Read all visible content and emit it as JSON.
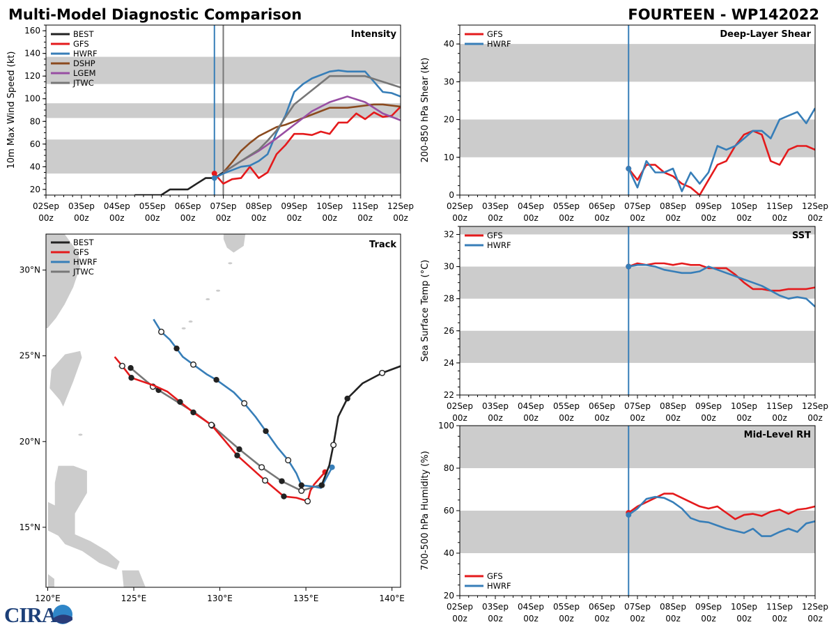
{
  "header": {
    "title": "Multi-Model Diagnostic Comparison",
    "storm": "FOURTEEN - WP142022"
  },
  "logo": "CIRA",
  "colors": {
    "BEST": "#222222",
    "GFS": "#e41a1c",
    "HWRF": "#377eb8",
    "DSHP": "#8b4a1e",
    "LGEM": "#984ea3",
    "JTWC": "#777777",
    "band": "#cccccc",
    "land": "#cccccc"
  },
  "x_ticks": [
    "02Sep",
    "03Sep",
    "04Sep",
    "05Sep",
    "06Sep",
    "07Sep",
    "08Sep",
    "09Sep",
    "10Sep",
    "11Sep",
    "12Sep"
  ],
  "x_tick_sub": "00z",
  "chart_data": [
    {
      "id": "intensity",
      "type": "line",
      "title": "Intensity",
      "ylabel": "10m Max Wind Speed (kt)",
      "xlim": [
        "02Sep 00z",
        "12Sep 00z"
      ],
      "ylim": [
        15,
        165
      ],
      "yticks": [
        20,
        40,
        60,
        80,
        100,
        120,
        140,
        160
      ],
      "bands": [
        [
          34,
          64
        ],
        [
          83,
          96
        ],
        [
          113,
          137
        ]
      ],
      "legend": "upper-left",
      "vlines": [
        {
          "x": "06Sep 18z",
          "color": "HWRF"
        },
        {
          "x": "07Sep 00z",
          "color": "JTWC"
        }
      ],
      "series": [
        {
          "name": "BEST",
          "x": [
            "04Sep 12z",
            "04Sep 18z",
            "05Sep 00z",
            "05Sep 06z",
            "05Sep 12z",
            "05Sep 18z",
            "06Sep 00z",
            "06Sep 06z",
            "06Sep 12z",
            "06Sep 18z",
            "07Sep 00z"
          ],
          "values": [
            15,
            15,
            15,
            15,
            20,
            20,
            20,
            25,
            30,
            30,
            35
          ]
        },
        {
          "name": "GFS",
          "init_marker": true,
          "x": [
            "06Sep 18z",
            "07Sep 00z",
            "07Sep 06z",
            "07Sep 12z",
            "07Sep 18z",
            "08Sep 00z",
            "08Sep 06z",
            "08Sep 12z",
            "08Sep 18z",
            "09Sep 00z",
            "09Sep 06z",
            "09Sep 12z",
            "09Sep 18z",
            "10Sep 00z",
            "10Sep 06z",
            "10Sep 12z",
            "10Sep 18z",
            "11Sep 00z",
            "11Sep 06z",
            "11Sep 12z",
            "11Sep 18z",
            "12Sep 00z"
          ],
          "values": [
            34,
            25,
            29,
            30,
            40,
            30,
            35,
            51,
            59,
            69,
            69,
            68,
            71,
            69,
            79,
            79,
            87,
            82,
            88,
            84,
            85,
            93
          ]
        },
        {
          "name": "HWRF",
          "init_marker": true,
          "x": [
            "06Sep 18z",
            "07Sep 00z",
            "07Sep 06z",
            "07Sep 12z",
            "07Sep 18z",
            "08Sep 00z",
            "08Sep 06z",
            "08Sep 12z",
            "08Sep 18z",
            "09Sep 00z",
            "09Sep 06z",
            "09Sep 12z",
            "09Sep 18z",
            "10Sep 00z",
            "10Sep 06z",
            "10Sep 12z",
            "10Sep 18z",
            "11Sep 00z",
            "11Sep 06z",
            "11Sep 12z",
            "11Sep 18z",
            "12Sep 00z"
          ],
          "values": [
            30,
            34,
            37,
            40,
            41,
            45,
            51,
            70,
            85,
            106,
            113,
            118,
            121,
            124,
            125,
            124,
            124,
            124,
            115,
            106,
            105,
            102
          ]
        },
        {
          "name": "DSHP",
          "x": [
            "07Sep 00z",
            "07Sep 06z",
            "07Sep 12z",
            "07Sep 18z",
            "08Sep 00z",
            "08Sep 06z",
            "08Sep 12z",
            "08Sep 18z",
            "09Sep 00z",
            "09Sep 12z",
            "10Sep 00z",
            "10Sep 12z",
            "11Sep 00z",
            "11Sep 06z",
            "11Sep 12z",
            "12Sep 00z"
          ],
          "values": [
            35,
            44,
            54,
            61,
            67,
            71,
            75,
            77,
            80,
            86,
            92,
            92,
            94,
            95,
            95,
            93
          ]
        },
        {
          "name": "LGEM",
          "x": [
            "07Sep 00z",
            "07Sep 12z",
            "08Sep 00z",
            "08Sep 12z",
            "09Sep 00z",
            "09Sep 12z",
            "10Sep 00z",
            "10Sep 12z",
            "11Sep 00z",
            "11Sep 12z",
            "12Sep 00z"
          ],
          "values": [
            35,
            45,
            54,
            65,
            77,
            89,
            97,
            102,
            97,
            87,
            81
          ]
        },
        {
          "name": "JTWC",
          "x": [
            "07Sep 00z",
            "07Sep 12z",
            "08Sep 00z",
            "08Sep 06z",
            "08Sep 12z",
            "09Sep 00z",
            "10Sep 00z",
            "11Sep 00z",
            "12Sep 00z"
          ],
          "values": [
            35,
            45,
            55,
            63,
            72,
            95,
            120,
            120,
            110
          ]
        }
      ]
    },
    {
      "id": "shear",
      "type": "line",
      "title": "Deep-Layer Shear",
      "ylabel": "200-850 hPa Shear (kt)",
      "xlim": [
        "02Sep 00z",
        "12Sep 00z"
      ],
      "ylim": [
        0,
        45
      ],
      "yticks": [
        0,
        10,
        20,
        30,
        40
      ],
      "bands": [
        [
          10,
          20
        ],
        [
          30,
          40
        ]
      ],
      "legend": "upper-left",
      "vlines": [
        {
          "x": "06Sep 18z",
          "color": "HWRF"
        }
      ],
      "x": [
        "06Sep 18z",
        "07Sep 00z",
        "07Sep 06z",
        "07Sep 12z",
        "07Sep 18z",
        "08Sep 00z",
        "08Sep 06z",
        "08Sep 12z",
        "08Sep 18z",
        "09Sep 00z",
        "09Sep 06z",
        "09Sep 12z",
        "09Sep 18z",
        "10Sep 00z",
        "10Sep 06z",
        "10Sep 12z",
        "10Sep 18z",
        "11Sep 00z",
        "11Sep 06z",
        "11Sep 12z",
        "11Sep 18z",
        "12Sep 00z"
      ],
      "series": [
        {
          "name": "GFS",
          "init_marker": true,
          "values": [
            7,
            4,
            8,
            8,
            6,
            5,
            3,
            2,
            0,
            4,
            8,
            9,
            13,
            16,
            17,
            16,
            9,
            8,
            12,
            13,
            13,
            12
          ]
        },
        {
          "name": "HWRF",
          "init_marker": true,
          "values": [
            7,
            2,
            9,
            6,
            6,
            7,
            1,
            6,
            3,
            6,
            13,
            12,
            13,
            15,
            17,
            17,
            15,
            20,
            21,
            22,
            19,
            23
          ]
        }
      ]
    },
    {
      "id": "sst",
      "type": "line",
      "title": "SST",
      "ylabel": "Sea Surface Temp (°C)",
      "xlim": [
        "02Sep 00z",
        "12Sep 00z"
      ],
      "ylim": [
        22,
        32.5
      ],
      "yticks": [
        22,
        24,
        26,
        28,
        30,
        32
      ],
      "bands": [
        [
          24,
          26
        ],
        [
          28,
          30
        ],
        [
          32,
          32.5
        ]
      ],
      "legend": "upper-left",
      "vlines": [
        {
          "x": "06Sep 18z",
          "color": "HWRF"
        }
      ],
      "x": [
        "06Sep 18z",
        "07Sep 00z",
        "07Sep 06z",
        "07Sep 12z",
        "07Sep 18z",
        "08Sep 00z",
        "08Sep 06z",
        "08Sep 12z",
        "08Sep 18z",
        "09Sep 00z",
        "09Sep 06z",
        "09Sep 12z",
        "09Sep 18z",
        "10Sep 00z",
        "10Sep 06z",
        "10Sep 12z",
        "10Sep 18z",
        "11Sep 00z",
        "11Sep 06z",
        "11Sep 12z",
        "11Sep 18z",
        "12Sep 00z"
      ],
      "series": [
        {
          "name": "GFS",
          "init_marker": true,
          "values": [
            30.0,
            30.2,
            30.1,
            30.2,
            30.2,
            30.1,
            30.2,
            30.1,
            30.1,
            29.9,
            29.9,
            29.9,
            29.5,
            29.0,
            28.6,
            28.6,
            28.5,
            28.5,
            28.6,
            28.6,
            28.6,
            28.7
          ]
        },
        {
          "name": "HWRF",
          "init_marker": true,
          "values": [
            30.0,
            30.1,
            30.1,
            30.0,
            29.8,
            29.7,
            29.6,
            29.6,
            29.7,
            30.0,
            29.8,
            29.6,
            29.4,
            29.2,
            29.0,
            28.8,
            28.5,
            28.2,
            28.0,
            28.1,
            28.0,
            27.5
          ]
        }
      ]
    },
    {
      "id": "rh",
      "type": "line",
      "title": "Mid-Level RH",
      "ylabel": "700-500 hPa Humidity (%)",
      "xlim": [
        "02Sep 00z",
        "12Sep 00z"
      ],
      "ylim": [
        20,
        100
      ],
      "yticks": [
        20,
        40,
        60,
        80,
        100
      ],
      "bands": [
        [
          40,
          60
        ],
        [
          80,
          100
        ]
      ],
      "legend": "lower-left",
      "vlines": [
        {
          "x": "06Sep 18z",
          "color": "HWRF"
        }
      ],
      "x": [
        "06Sep 18z",
        "07Sep 00z",
        "07Sep 06z",
        "07Sep 12z",
        "07Sep 18z",
        "08Sep 00z",
        "08Sep 06z",
        "08Sep 12z",
        "08Sep 18z",
        "09Sep 00z",
        "09Sep 06z",
        "09Sep 12z",
        "09Sep 18z",
        "10Sep 00z",
        "10Sep 06z",
        "10Sep 12z",
        "10Sep 18z",
        "11Sep 00z",
        "11Sep 06z",
        "11Sep 12z",
        "11Sep 18z",
        "12Sep 00z"
      ],
      "series": [
        {
          "name": "GFS",
          "init_marker": true,
          "values": [
            59,
            62,
            64,
            66,
            68,
            68,
            66,
            64,
            62,
            61,
            62,
            59,
            56,
            58,
            58.5,
            57.5,
            59.5,
            60.5,
            58.5,
            60.5,
            61,
            62
          ]
        },
        {
          "name": "HWRF",
          "init_marker": true,
          "values": [
            58,
            61,
            65.5,
            66.5,
            66,
            64,
            61,
            56.5,
            55,
            54.5,
            53,
            51.5,
            50.5,
            49.5,
            51.5,
            48,
            48,
            50,
            51.5,
            50,
            54,
            55
          ]
        }
      ]
    },
    {
      "id": "track",
      "type": "scatter",
      "title": "Track",
      "lon_range": [
        119.9,
        140.5
      ],
      "lat_range": [
        11.5,
        32.1
      ],
      "xticks": [
        {
          "v": 120,
          "label": "120°E"
        },
        {
          "v": 125,
          "label": "125°E"
        },
        {
          "v": 130,
          "label": "130°E"
        },
        {
          "v": 135,
          "label": "135°E"
        },
        {
          "v": 140,
          "label": "140°E"
        }
      ],
      "yticks": [
        {
          "v": 15,
          "label": "15°N"
        },
        {
          "v": 20,
          "label": "20°N"
        },
        {
          "v": 25,
          "label": "25°N"
        },
        {
          "v": 30,
          "label": "30°N"
        }
      ],
      "legend": "upper-left",
      "series": [
        {
          "name": "BEST",
          "points": [
            {
              "lon": 135.91,
              "lat": 17.45,
              "marker": "filled"
            },
            {
              "lon": 136.36,
              "lat": 18.62
            },
            {
              "lon": 136.6,
              "lat": 19.8,
              "marker": "open"
            },
            {
              "lon": 136.88,
              "lat": 21.46
            },
            {
              "lon": 137.41,
              "lat": 22.51,
              "marker": "filled"
            },
            {
              "lon": 138.3,
              "lat": 23.4
            },
            {
              "lon": 139.43,
              "lat": 24.0,
              "marker": "open"
            },
            {
              "lon": 140.53,
              "lat": 24.41
            }
          ]
        },
        {
          "name": "GFS",
          "end_marker": true,
          "points": [
            {
              "lon": 123.89,
              "lat": 24.94
            },
            {
              "lon": 124.33,
              "lat": 24.41,
              "marker": "open"
            },
            {
              "lon": 124.86,
              "lat": 23.72,
              "marker": "filled"
            },
            {
              "lon": 126.15,
              "lat": 23.28
            },
            {
              "lon": 126.96,
              "lat": 22.91
            },
            {
              "lon": 127.69,
              "lat": 22.31,
              "marker": "filled"
            },
            {
              "lon": 128.46,
              "lat": 21.7,
              "marker": "filled"
            },
            {
              "lon": 129.51,
              "lat": 20.97,
              "marker": "open"
            },
            {
              "lon": 130.2,
              "lat": 20.16
            },
            {
              "lon": 131.01,
              "lat": 19.19,
              "marker": "filled"
            },
            {
              "lon": 131.82,
              "lat": 18.46
            },
            {
              "lon": 132.63,
              "lat": 17.73,
              "marker": "open"
            },
            {
              "lon": 133.72,
              "lat": 16.8,
              "marker": "filled"
            },
            {
              "lon": 134.45,
              "lat": 16.72
            },
            {
              "lon": 135.1,
              "lat": 16.52,
              "marker": "open"
            },
            {
              "lon": 135.26,
              "lat": 17.13
            },
            {
              "lon": 135.47,
              "lat": 17.49
            },
            {
              "lon": 136.11,
              "lat": 18.22
            }
          ]
        },
        {
          "name": "HWRF",
          "end_marker": true,
          "points": [
            {
              "lon": 126.15,
              "lat": 27.13
            },
            {
              "lon": 126.6,
              "lat": 26.4,
              "marker": "open"
            },
            {
              "lon": 127.09,
              "lat": 25.95
            },
            {
              "lon": 127.49,
              "lat": 25.43,
              "marker": "filled"
            },
            {
              "lon": 127.85,
              "lat": 24.94
            },
            {
              "lon": 128.46,
              "lat": 24.49,
              "marker": "open"
            },
            {
              "lon": 129.23,
              "lat": 23.93
            },
            {
              "lon": 129.8,
              "lat": 23.6,
              "marker": "filled"
            },
            {
              "lon": 130.81,
              "lat": 22.87
            },
            {
              "lon": 131.42,
              "lat": 22.23,
              "marker": "open"
            },
            {
              "lon": 132.06,
              "lat": 21.46
            },
            {
              "lon": 132.67,
              "lat": 20.61,
              "marker": "filled"
            },
            {
              "lon": 133.36,
              "lat": 19.64
            },
            {
              "lon": 133.97,
              "lat": 18.91,
              "marker": "open"
            },
            {
              "lon": 134.45,
              "lat": 18.14
            },
            {
              "lon": 134.74,
              "lat": 17.45,
              "marker": "filled"
            },
            {
              "lon": 135.47,
              "lat": 17.37
            },
            {
              "lon": 135.87,
              "lat": 17.29
            },
            {
              "lon": 136.52,
              "lat": 18.5
            }
          ]
        },
        {
          "name": "JTWC",
          "end_marker": true,
          "points": [
            {
              "lon": 124.82,
              "lat": 24.29,
              "marker": "filled"
            },
            {
              "lon": 126.11,
              "lat": 23.2,
              "marker": "open"
            },
            {
              "lon": 126.44,
              "lat": 23.0,
              "marker": "filled"
            },
            {
              "lon": 128.58,
              "lat": 21.66
            },
            {
              "lon": 129.55,
              "lat": 20.93,
              "marker": "open"
            },
            {
              "lon": 131.13,
              "lat": 19.55,
              "marker": "filled"
            },
            {
              "lon": 132.43,
              "lat": 18.5,
              "marker": "open"
            },
            {
              "lon": 133.6,
              "lat": 17.69,
              "marker": "filled"
            },
            {
              "lon": 134.74,
              "lat": 17.13,
              "marker": "open"
            },
            {
              "lon": 135.67,
              "lat": 17.41
            },
            {
              "lon": 135.95,
              "lat": 17.45
            }
          ]
        }
      ]
    }
  ]
}
